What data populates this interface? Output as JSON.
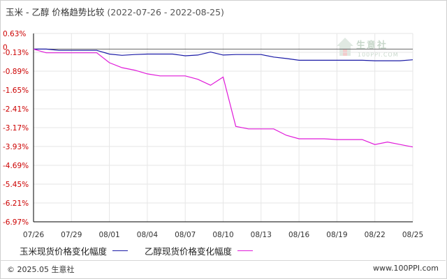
{
  "header": {
    "title": "玉米 - 乙醇 价格趋势比较",
    "date_range": "(2022-07-26 - 2022-08-25)"
  },
  "watermark": {
    "brand": "生意社",
    "url": "100PPI.COM"
  },
  "footer": {
    "copyright": "© 2025.05 生意社",
    "site": "www.100PPI.com"
  },
  "colors": {
    "corn": "#1a1aa6",
    "ethanol": "#e01ad9",
    "ytick": "#cc0000",
    "axis": "#000000",
    "grid": "#e6e6e6"
  },
  "chart_data": {
    "type": "line",
    "title": "玉米 - 乙醇 价格趋势比较",
    "x": [
      "07/26",
      "07/27",
      "07/28",
      "07/29",
      "07/30",
      "07/31",
      "08/01",
      "08/02",
      "08/03",
      "08/04",
      "08/05",
      "08/06",
      "08/07",
      "08/08",
      "08/09",
      "08/10",
      "08/11",
      "08/12",
      "08/13",
      "08/14",
      "08/15",
      "08/16",
      "08/17",
      "08/18",
      "08/19",
      "08/20",
      "08/21",
      "08/22",
      "08/23",
      "08/24",
      "08/25"
    ],
    "xticks": [
      "07/26",
      "07/29",
      "08/01",
      "08/04",
      "08/07",
      "08/10",
      "08/13",
      "08/16",
      "08/19",
      "08/22",
      "08/25"
    ],
    "yticks": [
      "0.63%",
      "-0.13%",
      "-0.89%",
      "-1.65%",
      "-2.41%",
      "-3.17%",
      "-3.93%",
      "-4.69%",
      "-5.45%",
      "-6.21%",
      "-6.97%"
    ],
    "ylim": [
      -6.97,
      0.63
    ],
    "zero_label": "0",
    "grid": true,
    "series": [
      {
        "name": "玉米现货价格变化幅度",
        "values": [
          0,
          0,
          -0.05,
          -0.05,
          -0.05,
          -0.05,
          -0.2,
          -0.25,
          -0.22,
          -0.2,
          -0.2,
          -0.2,
          -0.27,
          -0.24,
          -0.12,
          -0.24,
          -0.22,
          -0.22,
          -0.22,
          -0.32,
          -0.38,
          -0.45,
          -0.45,
          -0.45,
          -0.45,
          -0.45,
          -0.45,
          -0.47,
          -0.47,
          -0.47,
          -0.43
        ]
      },
      {
        "name": "乙醇现货价格变化幅度",
        "values": [
          0,
          -0.15,
          -0.15,
          -0.15,
          -0.15,
          -0.15,
          -0.55,
          -0.75,
          -0.85,
          -1.0,
          -1.08,
          -1.08,
          -1.08,
          -1.22,
          -1.46,
          -1.13,
          -3.12,
          -3.22,
          -3.22,
          -3.22,
          -3.48,
          -3.62,
          -3.62,
          -3.62,
          -3.65,
          -3.65,
          -3.65,
          -3.85,
          -3.75,
          -3.85,
          -3.95
        ]
      }
    ]
  }
}
